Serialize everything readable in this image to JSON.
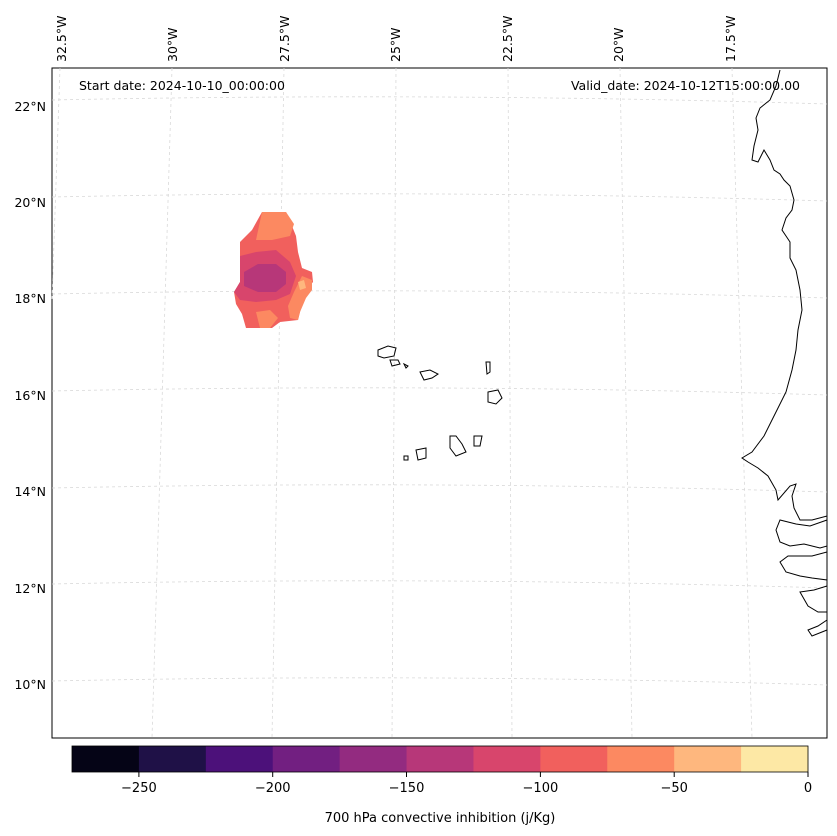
{
  "map": {
    "start_label": "Start date: 2024-10-10_00:00:00",
    "valid_label": "Valid_date: 2024-10-12T15:00:00.00",
    "lon_labels": [
      "32.5°W",
      "30°W",
      "27.5°W",
      "25°W",
      "22.5°W",
      "20°W",
      "17.5°W"
    ],
    "lat_labels": [
      "22°N",
      "20°N",
      "18°N",
      "16°N",
      "14°N",
      "12°N",
      "10°N"
    ]
  },
  "colorbar": {
    "label": "700 hPa convective inhibition (j/Kg)",
    "ticks": [
      "−250",
      "−200",
      "−150",
      "−100",
      "−50",
      "0"
    ],
    "colors": [
      "#050416",
      "#1f1147",
      "#4c117a",
      "#721f81",
      "#932b80",
      "#b73779",
      "#d8456c",
      "#f1605d",
      "#fc8961",
      "#feb77e",
      "#fde8a5"
    ]
  },
  "colors": {
    "fill_neg100": "#f1605d",
    "fill_neg75": "#fc8961",
    "fill_neg125": "#d8456c",
    "fill_neg150": "#b73779",
    "fill_neg50": "#feb77e"
  }
}
